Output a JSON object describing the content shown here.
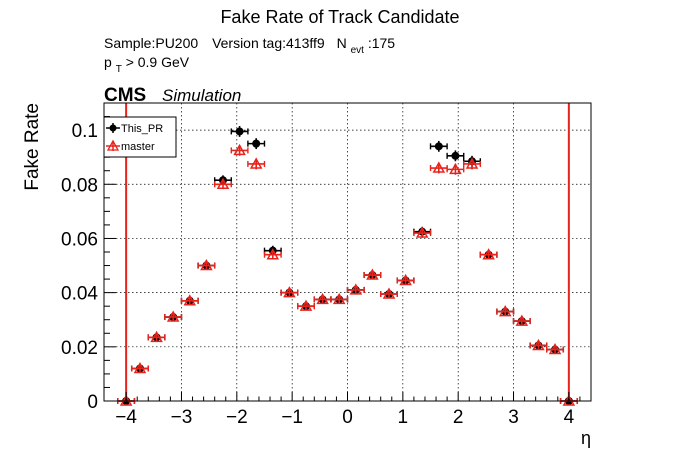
{
  "chart_data": {
    "type": "scatter",
    "title": "Fake Rate of Track Candidate",
    "info": {
      "sample": "Sample:PU200",
      "version": "Version tag:413ff9",
      "nevt_label": "N",
      "nevt_sub": "evt",
      "nevt_value": ":175",
      "pt_label": "p",
      "pt_sub": "T",
      "pt_cut": " > 0.9 GeV"
    },
    "cms_label": "CMS",
    "cms_sublabel": "Simulation",
    "xlabel": "η",
    "ylabel": "Fake Rate",
    "xlim": [
      -4.4,
      4.4
    ],
    "ylim": [
      0,
      0.11
    ],
    "xticks": [
      "−4",
      "−3",
      "−2",
      "−1",
      "0",
      "1",
      "2",
      "3",
      "4"
    ],
    "yticks": [
      "0",
      "0.02",
      "0.04",
      "0.06",
      "0.08",
      "0.1"
    ],
    "grid": true,
    "legend_position": "top-left",
    "boundary_lines": [
      -4,
      4
    ],
    "x_bin_halfwidth": 0.15,
    "series": [
      {
        "name": "This_PR",
        "color": "#000000",
        "marker": "circle",
        "x": [
          -4.0,
          -3.75,
          -3.45,
          -3.15,
          -2.85,
          -2.55,
          -2.25,
          -1.95,
          -1.65,
          -1.35,
          -1.05,
          -0.75,
          -0.45,
          -0.15,
          0.15,
          0.45,
          0.75,
          1.05,
          1.35,
          1.65,
          1.95,
          2.25,
          2.55,
          2.85,
          3.15,
          3.45,
          3.75,
          4.0
        ],
        "y": [
          0.0,
          0.012,
          0.0235,
          0.031,
          0.037,
          0.05,
          0.0815,
          0.0995,
          0.095,
          0.0555,
          0.04,
          0.035,
          0.0375,
          0.0375,
          0.041,
          0.0465,
          0.0395,
          0.0445,
          0.0625,
          0.094,
          0.0905,
          0.0885,
          0.054,
          0.033,
          0.0295,
          0.0205,
          0.019,
          0.0
        ],
        "yerr": [
          0.0,
          0.0012,
          0.0012,
          0.0012,
          0.0014,
          0.0015,
          0.0018,
          0.002,
          0.002,
          0.0018,
          0.0015,
          0.0014,
          0.0014,
          0.0014,
          0.0015,
          0.0015,
          0.0014,
          0.0015,
          0.0018,
          0.002,
          0.002,
          0.002,
          0.0015,
          0.0013,
          0.0012,
          0.0012,
          0.0012,
          0.0
        ]
      },
      {
        "name": "master",
        "color": "#e8231c",
        "marker": "triangle-open",
        "x": [
          -4.0,
          -3.75,
          -3.45,
          -3.15,
          -2.85,
          -2.55,
          -2.25,
          -1.95,
          -1.65,
          -1.35,
          -1.05,
          -0.75,
          -0.45,
          -0.15,
          0.15,
          0.45,
          0.75,
          1.05,
          1.35,
          1.65,
          1.95,
          2.25,
          2.55,
          2.85,
          3.15,
          3.45,
          3.75,
          4.0
        ],
        "y": [
          0.0,
          0.012,
          0.0235,
          0.031,
          0.037,
          0.05,
          0.08,
          0.0925,
          0.0875,
          0.054,
          0.04,
          0.035,
          0.0375,
          0.0375,
          0.041,
          0.0465,
          0.0395,
          0.0445,
          0.062,
          0.086,
          0.0855,
          0.0875,
          0.054,
          0.033,
          0.0295,
          0.0205,
          0.019,
          0.0
        ],
        "yerr": [
          0.0,
          0.0012,
          0.0012,
          0.0012,
          0.0014,
          0.0015,
          0.0018,
          0.002,
          0.002,
          0.0018,
          0.0015,
          0.0014,
          0.0014,
          0.0014,
          0.0015,
          0.0015,
          0.0014,
          0.0015,
          0.0018,
          0.002,
          0.002,
          0.002,
          0.0015,
          0.0013,
          0.0012,
          0.0012,
          0.0012,
          0.0
        ]
      }
    ]
  }
}
